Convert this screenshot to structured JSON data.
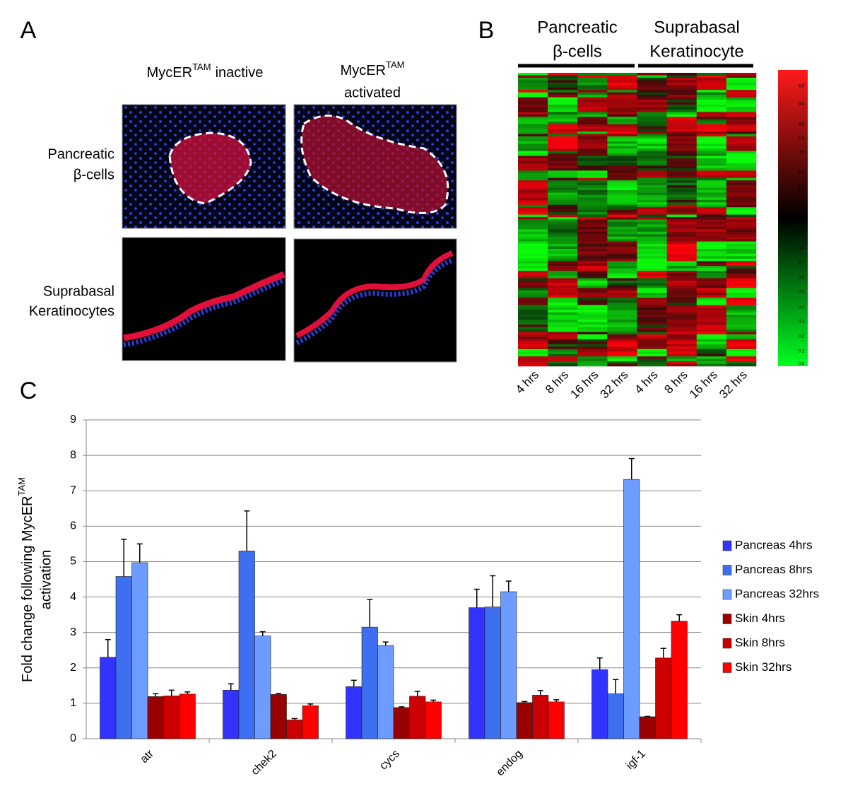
{
  "panel_a": {
    "label": "A",
    "columns": [
      {
        "name": "MycER",
        "sup": "TAM",
        "state": "inactive"
      },
      {
        "name": "MycER",
        "sup": "TAM",
        "state": "activated"
      }
    ],
    "rows": [
      [
        "Pancreatic",
        "β-cells"
      ],
      [
        "Suprabasal",
        "Keratinocytes"
      ]
    ]
  },
  "panel_b": {
    "label": "B",
    "groups": [
      [
        "Pancreatic",
        "β-cells"
      ],
      [
        "Suprabasal",
        "Keratinocyte"
      ]
    ],
    "timepoints": [
      "4 hrs",
      "8 hrs",
      "16 hrs",
      "32 hrs",
      "4 hrs",
      "8 hrs",
      "16 hrs",
      "32 hrs"
    ],
    "color_scale_ticks": [
      {
        "value": 5,
        "label": "5.0"
      },
      {
        "value": 4,
        "label": "4.0"
      },
      {
        "value": 3,
        "label": "3.0"
      },
      2.5,
      {
        "value": 2,
        "label": "2.0"
      },
      1.5,
      1.2,
      {
        "value": 1,
        "label": "1.0"
      },
      0.9,
      0.8,
      0.7,
      0.6,
      0.5,
      0.4,
      0.3,
      0.2,
      0.1,
      {
        "value": 0,
        "label": "0.0"
      }
    ]
  },
  "chart_data": {
    "type": "bar",
    "label": "C",
    "y_label": {
      "text": "Fold change following MycER",
      "sup": "TAM",
      "line2": "activation"
    },
    "categories": [
      "atr",
      "chek2",
      "cycs",
      "endog",
      "igf-1"
    ],
    "series": [
      {
        "name": "Pancreas 4hrs",
        "color": "#3333ff",
        "values": [
          2.3,
          1.37,
          1.47,
          3.7,
          1.95
        ],
        "errors": [
          0.5,
          0.18,
          0.18,
          0.52,
          0.33
        ]
      },
      {
        "name": "Pancreas 8hrs",
        "color": "#3d6ff0",
        "values": [
          4.58,
          5.3,
          3.15,
          3.72,
          1.27
        ],
        "errors": [
          1.05,
          1.13,
          0.78,
          0.88,
          0.4
        ]
      },
      {
        "name": "Pancreas 32hrs",
        "color": "#6c9cff",
        "values": [
          4.97,
          2.9,
          2.63,
          4.15,
          7.32
        ],
        "errors": [
          0.53,
          0.12,
          0.1,
          0.3,
          0.59
        ]
      },
      {
        "name": "Skin 4hrs",
        "color": "#990000",
        "values": [
          1.19,
          1.25,
          0.88,
          1.02,
          0.62
        ],
        "errors": [
          0.08,
          0.03,
          0.02,
          0.03,
          0.01
        ]
      },
      {
        "name": "Skin 8hrs",
        "color": "#cc0000",
        "values": [
          1.21,
          0.53,
          1.2,
          1.23,
          2.28
        ],
        "errors": [
          0.16,
          0.04,
          0.14,
          0.13,
          0.27
        ]
      },
      {
        "name": "Skin 32hrs",
        "color": "#ff0000",
        "values": [
          1.26,
          0.93,
          1.04,
          1.04,
          3.32
        ],
        "errors": [
          0.06,
          0.05,
          0.05,
          0.06,
          0.18
        ]
      }
    ],
    "ylim": [
      0,
      9
    ],
    "yticks": [
      0,
      1,
      2,
      3,
      4,
      5,
      6,
      7,
      8,
      9
    ],
    "grid": true,
    "legend": "right"
  }
}
